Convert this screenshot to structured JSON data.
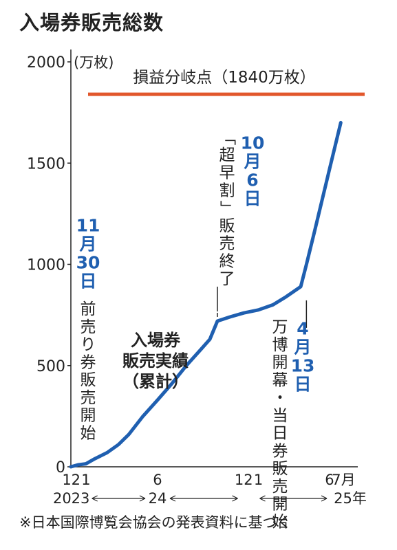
{
  "title": "入場券販売総数",
  "footnote": "※日本国際博覧会協会の発表資料に基づく",
  "chart_data": {
    "type": "line",
    "y_unit": "(万枚)",
    "ylim": [
      0,
      2000
    ],
    "yticks": [
      0,
      500,
      1000,
      1500,
      2000
    ],
    "xlim": [
      "2023-11-30",
      "2025-07-31"
    ],
    "x_tick_labels": [
      {
        "date": "2023-12-01",
        "label": "12"
      },
      {
        "date": "2024-01-01",
        "label": "1"
      },
      {
        "date": "2024-06-01",
        "label": "6"
      },
      {
        "date": "2024-12-01",
        "label": "12"
      },
      {
        "date": "2025-01-01",
        "label": "1"
      },
      {
        "date": "2025-06-01",
        "label": "6"
      },
      {
        "date": "2025-07-01",
        "label": "7月"
      }
    ],
    "years": [
      {
        "label": "2023",
        "date": "2023-12-01"
      },
      {
        "label": "24",
        "date": "2024-06-01"
      },
      {
        "label": "25年",
        "date": "2025-07-15"
      }
    ],
    "series": [
      {
        "name": "入場券販売実績（累計）",
        "color": "#1f5fb0",
        "points": [
          [
            "2023-11-30",
            0
          ],
          [
            "2023-12-15",
            10
          ],
          [
            "2024-01-01",
            15
          ],
          [
            "2024-01-20",
            40
          ],
          [
            "2024-02-15",
            70
          ],
          [
            "2024-03-10",
            110
          ],
          [
            "2024-04-01",
            160
          ],
          [
            "2024-05-01",
            250
          ],
          [
            "2024-06-01",
            330
          ],
          [
            "2024-07-01",
            410
          ],
          [
            "2024-08-01",
            500
          ],
          [
            "2024-09-01",
            580
          ],
          [
            "2024-09-20",
            630
          ],
          [
            "2024-10-06",
            720
          ],
          [
            "2024-11-01",
            740
          ],
          [
            "2024-12-01",
            760
          ],
          [
            "2025-01-01",
            775
          ],
          [
            "2025-02-01",
            800
          ],
          [
            "2025-03-01",
            840
          ],
          [
            "2025-04-01",
            890
          ],
          [
            "2025-04-13",
            1000
          ],
          [
            "2025-05-01",
            1170
          ],
          [
            "2025-06-01",
            1470
          ],
          [
            "2025-06-25",
            1700
          ]
        ]
      }
    ],
    "reference_line": {
      "label": "損益分岐点（1840万枚）",
      "value": 1840,
      "color": "#e2572c"
    },
    "annotations": {
      "nov30_date": "11月30日",
      "nov30_text": "前売り券販売開始",
      "oct6_date": "10月6日",
      "oct6_text": "「超早割」販売終了",
      "apr13_date": "4月13日",
      "apr13_text": "万博開幕・当日券販売開始",
      "series_label": "入場券販売実績（累計）"
    }
  }
}
